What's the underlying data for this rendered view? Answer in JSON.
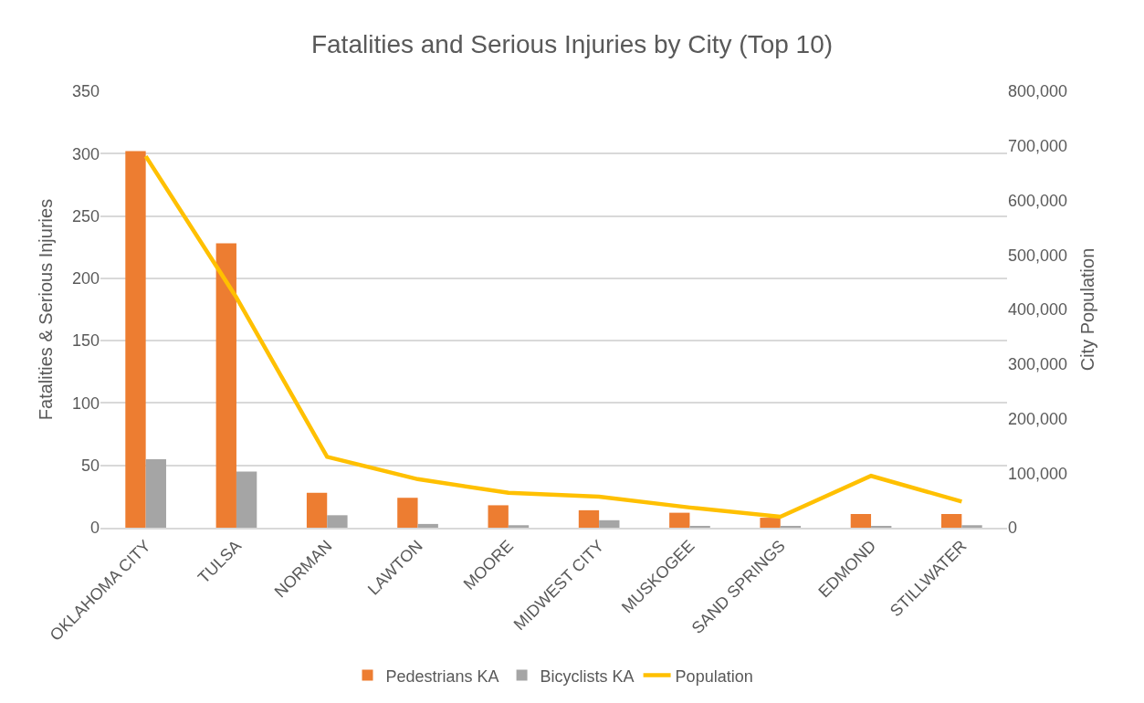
{
  "chart_data": {
    "type": "bar",
    "title": "Fatalities and Serious Injuries by City (Top 10)",
    "ylabel": "Fatalities & Serious Injuries",
    "y2label": "City Population",
    "categories": [
      "OKLAHOMA CITY",
      "TULSA",
      "NORMAN",
      "LAWTON",
      "MOORE",
      "MIDWEST CITY",
      "MUSKOGEE",
      "SAND SPRINGS",
      "EDMOND",
      "STILLWATER"
    ],
    "series": [
      {
        "name": "Pedestrians KA",
        "color": "#ed7d31",
        "values": [
          302,
          228,
          28,
          24,
          18,
          14,
          12,
          8,
          11,
          11
        ]
      },
      {
        "name": "Bicyclists KA",
        "color": "#a5a5a5",
        "values": [
          55,
          45,
          10,
          3,
          2,
          6,
          1,
          1,
          1,
          2
        ]
      },
      {
        "name": "Population",
        "color": "#ffc000",
        "type": "line",
        "axis": "y2",
        "values": [
          681000,
          422000,
          130000,
          89000,
          64000,
          57000,
          37000,
          20000,
          95000,
          48000
        ]
      }
    ],
    "ylim": [
      0,
      350
    ],
    "yticks": [
      0,
      50,
      100,
      150,
      200,
      250,
      300,
      350
    ],
    "y2lim": [
      0,
      800000
    ],
    "y2ticks": [
      {
        "value": 0,
        "label": "0"
      },
      {
        "value": 100000,
        "label": "100,000"
      },
      {
        "value": 200000,
        "label": "200,000"
      },
      {
        "value": 300000,
        "label": "300,000"
      },
      {
        "value": 400000,
        "label": "400,000"
      },
      {
        "value": 500000,
        "label": "500,000"
      },
      {
        "value": 600000,
        "label": "600,000"
      },
      {
        "value": 700000,
        "label": "700,000"
      },
      {
        "value": 800000,
        "label": "800,000"
      }
    ],
    "grid": "y",
    "legend": "bottom",
    "marker": "none"
  }
}
